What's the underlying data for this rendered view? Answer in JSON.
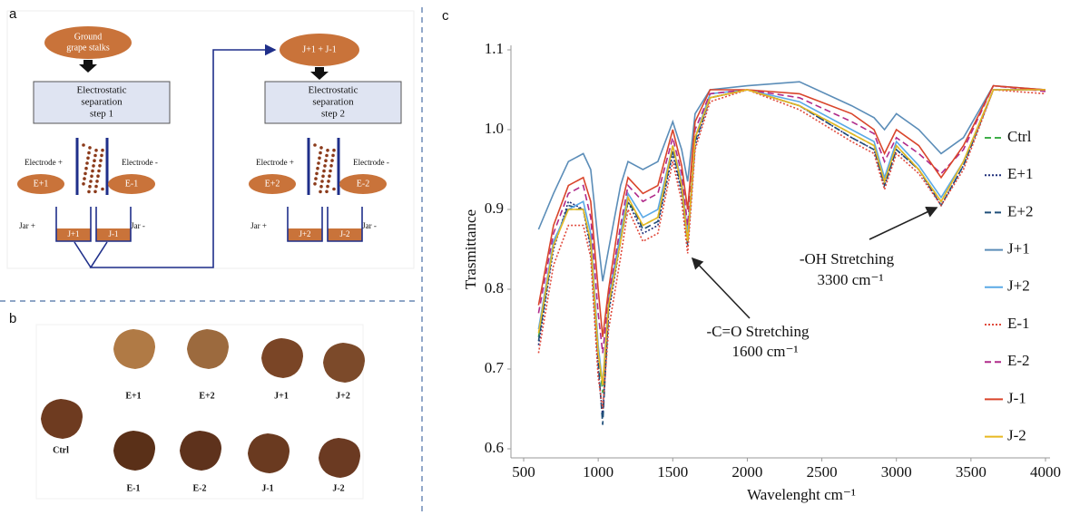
{
  "panel_labels": [
    "a",
    "b",
    "c"
  ],
  "diagram": {
    "step1": {
      "input": [
        "Ground",
        "grape stalks"
      ],
      "box": [
        "Electrostatic",
        "separation",
        "step 1"
      ],
      "electrode_pos": "Electrode +",
      "electrode_neg": "Electrode -",
      "fraction_pos": "E+1",
      "fraction_neg": "E-1",
      "jar_pos": "Jar +",
      "jar_neg": "Jar -",
      "jar_fraction_pos": "J+1",
      "jar_fraction_neg": "J-1"
    },
    "step2": {
      "input": [
        "J+1 + J-1"
      ],
      "box": [
        "Electrostatic",
        "separation",
        "step 2"
      ],
      "electrode_pos": "Electrode +",
      "electrode_neg": "Electrode -",
      "fraction_pos": "E+2",
      "fraction_neg": "E-2",
      "jar_pos": "Jar +",
      "jar_neg": "Jar -",
      "jar_fraction_pos": "J+2",
      "jar_fraction_neg": "J-2"
    }
  },
  "photos": [
    "E+1",
    "E+2",
    "J+1",
    "J+2",
    "Ctrl",
    "E-1",
    "E-2",
    "J-1",
    "J-2"
  ],
  "chart_data": {
    "type": "line",
    "xlabel": "Wavelenght cm⁻¹",
    "ylabel": "Trasmittance",
    "x": [
      600,
      700,
      800,
      900,
      950,
      1000,
      1030,
      1070,
      1150,
      1200,
      1300,
      1400,
      1500,
      1560,
      1600,
      1650,
      1750,
      2000,
      2350,
      2700,
      2850,
      2920,
      3000,
      3150,
      3300,
      3450,
      3650,
      4000
    ],
    "xlim": [
      500,
      4000
    ],
    "xticks": [
      500,
      1000,
      1500,
      2000,
      2500,
      3000,
      3500,
      4000
    ],
    "ylim": [
      0.6,
      1.1
    ],
    "yticks": [
      0.6,
      0.7,
      0.8,
      0.9,
      {
        "value": 1,
        "label": "1.0"
      },
      1.1
    ],
    "grid": false,
    "legend": "right",
    "annotations": [
      {
        "lines": [
          "-C=O Stretching",
          "1600 cm⁻¹"
        ]
      },
      {
        "lines": [
          "-OH Stretching",
          "3300 cm⁻¹"
        ]
      }
    ],
    "series": [
      {
        "name": "Ctrl",
        "color": "#3fae49",
        "dash": "dashed",
        "values": [
          0.74,
          0.86,
          0.9,
          0.9,
          0.86,
          0.72,
          0.67,
          0.78,
          0.86,
          0.91,
          0.88,
          0.89,
          0.98,
          0.93,
          0.86,
          0.99,
          1.04,
          1.05,
          1.03,
          0.995,
          0.98,
          0.935,
          0.98,
          0.95,
          0.91,
          0.96,
          1.05,
          1.05
        ]
      },
      {
        "name": "E+1",
        "color": "#1f2f7a",
        "dash": "dotted",
        "values": [
          0.73,
          0.85,
          0.91,
          0.9,
          0.85,
          0.7,
          0.64,
          0.77,
          0.86,
          0.91,
          0.87,
          0.88,
          0.97,
          0.92,
          0.86,
          0.98,
          1.04,
          1.05,
          1.03,
          0.99,
          0.975,
          0.93,
          0.975,
          0.95,
          0.905,
          0.955,
          1.05,
          1.05
        ]
      },
      {
        "name": "E+2",
        "color": "#1f4e79",
        "dash": "dashed",
        "values": [
          0.735,
          0.855,
          0.905,
          0.9,
          0.855,
          0.71,
          0.63,
          0.775,
          0.865,
          0.915,
          0.875,
          0.885,
          0.975,
          0.925,
          0.855,
          0.985,
          1.04,
          1.05,
          1.03,
          0.99,
          0.975,
          0.93,
          0.975,
          0.95,
          0.905,
          0.955,
          1.05,
          1.05
        ]
      },
      {
        "name": "J+1",
        "color": "#5b8db8",
        "dash": "solid",
        "values": [
          0.875,
          0.92,
          0.96,
          0.97,
          0.95,
          0.86,
          0.81,
          0.85,
          0.93,
          0.96,
          0.95,
          0.96,
          1.01,
          0.975,
          0.935,
          1.02,
          1.05,
          1.055,
          1.06,
          1.03,
          1.015,
          1.0,
          1.02,
          1.0,
          0.97,
          0.99,
          1.055,
          1.05
        ]
      },
      {
        "name": "J+2",
        "color": "#5aa9e6",
        "dash": "solid",
        "values": [
          0.75,
          0.86,
          0.9,
          0.91,
          0.87,
          0.73,
          0.68,
          0.79,
          0.87,
          0.92,
          0.89,
          0.9,
          0.98,
          0.935,
          0.87,
          0.99,
          1.045,
          1.05,
          1.035,
          1.0,
          0.985,
          0.94,
          0.985,
          0.955,
          0.915,
          0.96,
          1.05,
          1.05
        ]
      },
      {
        "name": "E-1",
        "color": "#e04a3c",
        "dash": "dotted",
        "values": [
          0.72,
          0.83,
          0.88,
          0.88,
          0.84,
          0.69,
          0.65,
          0.75,
          0.84,
          0.9,
          0.86,
          0.87,
          0.96,
          0.91,
          0.845,
          0.975,
          1.035,
          1.05,
          1.025,
          0.985,
          0.97,
          0.925,
          0.97,
          0.945,
          0.905,
          0.95,
          1.05,
          1.045
        ]
      },
      {
        "name": "E-2",
        "color": "#b02a8a",
        "dash": "dashed",
        "values": [
          0.77,
          0.87,
          0.92,
          0.93,
          0.89,
          0.77,
          0.72,
          0.79,
          0.88,
          0.93,
          0.91,
          0.92,
          0.99,
          0.945,
          0.88,
          1.0,
          1.045,
          1.05,
          1.04,
          1.01,
          0.995,
          0.96,
          0.99,
          0.97,
          0.945,
          0.975,
          1.055,
          1.048
        ]
      },
      {
        "name": "J-1",
        "color": "#d9452b",
        "dash": "solid",
        "values": [
          0.78,
          0.88,
          0.93,
          0.94,
          0.91,
          0.8,
          0.74,
          0.8,
          0.9,
          0.94,
          0.92,
          0.93,
          1.0,
          0.955,
          0.9,
          1.01,
          1.05,
          1.05,
          1.045,
          1.02,
          1.0,
          0.97,
          1.0,
          0.98,
          0.94,
          0.98,
          1.055,
          1.05
        ]
      },
      {
        "name": "J-2",
        "color": "#e8b820",
        "dash": "solid",
        "values": [
          0.745,
          0.855,
          0.9,
          0.9,
          0.86,
          0.72,
          0.68,
          0.78,
          0.86,
          0.915,
          0.88,
          0.89,
          0.98,
          0.93,
          0.86,
          0.99,
          1.04,
          1.05,
          1.03,
          0.995,
          0.98,
          0.935,
          0.98,
          0.95,
          0.91,
          0.96,
          1.05,
          1.05
        ]
      }
    ]
  }
}
